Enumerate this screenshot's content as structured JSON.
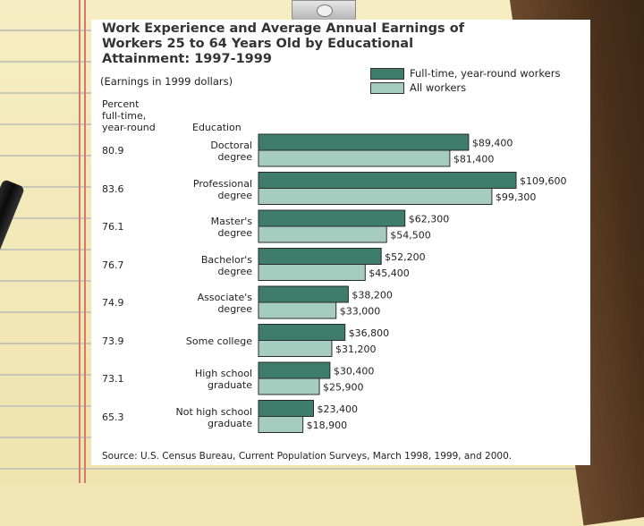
{
  "colors": {
    "full_time": "#3d7d6a",
    "all_workers": "#a6cbbf",
    "sheet": "#ffffff"
  },
  "decor": {
    "pen_icon": "pen-icon",
    "clip_icon": "clipboard-clip-icon"
  },
  "chart_data": {
    "type": "bar",
    "orientation": "horizontal",
    "title": "Work Experience and Average Annual Earnings of\nWorkers 25 to 64 Years Old by Educational\nAttainment: 1997-1999",
    "subtitle": "(Earnings in 1999 dollars)",
    "percent_header": "Percent\nfull-time,\nyear-round",
    "education_header": "Education",
    "legend_position": "top-right",
    "categories": [
      "Doctoral\ndegree",
      "Professional\ndegree",
      "Master's\ndegree",
      "Bachelor's\ndegree",
      "Associate's\ndegree",
      "Some college",
      "High school\ngraduate",
      "Not high school\ngraduate"
    ],
    "percent_full_time": [
      "80.9",
      "83.6",
      "76.1",
      "76.7",
      "74.9",
      "73.9",
      "73.1",
      "65.3"
    ],
    "series": [
      {
        "name": "Full-time, year-round workers",
        "values": [
          89400,
          109600,
          62300,
          52200,
          38200,
          36800,
          30400,
          23400
        ],
        "labels": [
          "$89,400",
          "$109,600",
          "$62,300",
          "$52,200",
          "$38,200",
          "$36,800",
          "$30,400",
          "$23,400"
        ]
      },
      {
        "name": "All workers",
        "values": [
          81400,
          99300,
          54500,
          45400,
          33000,
          31200,
          25900,
          18900
        ],
        "labels": [
          "$81,400",
          "$99,300",
          "$54,500",
          "$45,400",
          "$33,000",
          "$31,200",
          "$25,900",
          "$18,900"
        ]
      }
    ],
    "xlim": [
      0,
      120000
    ],
    "grid": false,
    "source": "Source: U.S. Census Bureau, Current Population Surveys, March 1998, 1999, and 2000."
  }
}
